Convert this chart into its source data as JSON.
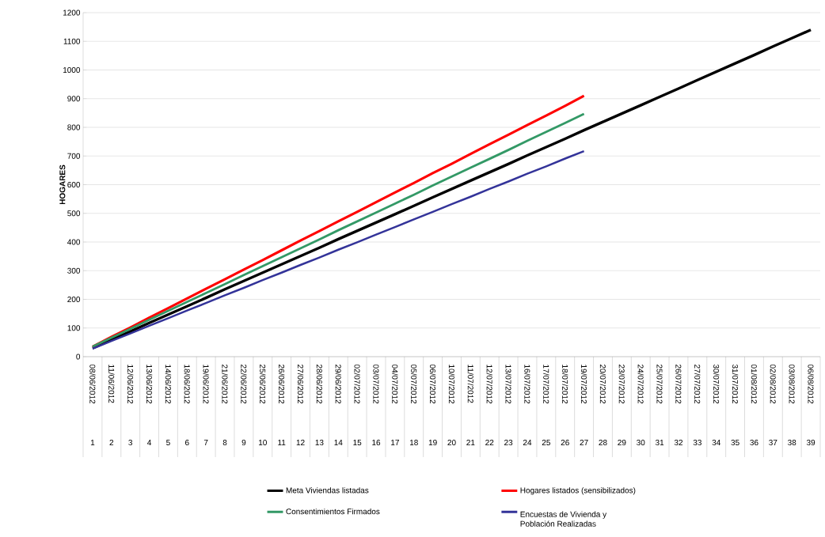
{
  "chart_data": {
    "type": "line",
    "ylabel": "**HOGARES**",
    "categories": [
      "08/06/2012",
      "11/06/2012",
      "12/06/2012",
      "13/06/2012",
      "14/06/2012",
      "18/06/2012",
      "19/06/2012",
      "21/06/2012",
      "22/06/2012",
      "25/06/2012",
      "26/06/2012",
      "27/06/2012",
      "28/06/2012",
      "29/06/2012",
      "02/07/2012",
      "03/07/2012",
      "04/07/2012",
      "05/07/2012",
      "06/07/2012",
      "10/07/2012",
      "11/07/2012",
      "12/07/2012",
      "13/07/2012",
      "16/07/2012",
      "17/07/2012",
      "18/07/2012",
      "19/07/2012",
      "20/07/2012",
      "23/07/2012",
      "24/07/2012",
      "25/07/2012",
      "26/07/2012",
      "27/07/2012",
      "30/07/2012",
      "31/07/2012",
      "01/08/2012",
      "02/08/2012",
      "03/08/2012",
      "06/08/2012"
    ],
    "annotations": [
      "1",
      "2",
      "3",
      "4",
      "5",
      "6",
      "7",
      "8",
      "9",
      "10",
      "11",
      "12",
      "13",
      "14",
      "15",
      "16",
      "17",
      "18",
      "19",
      "20",
      "21",
      "22",
      "23",
      "24",
      "25",
      "26",
      "27",
      "28",
      "29",
      "30",
      "31",
      "32",
      "33",
      "34",
      "35",
      "36",
      "37",
      "38",
      "39"
    ],
    "ylim": [
      0,
      1200
    ],
    "yticks": [
      0,
      100,
      200,
      300,
      400,
      500,
      600,
      700,
      800,
      900,
      1000,
      1100,
      1200
    ],
    "grid": "y",
    "legend": "bottom",
    "line_style": "solid",
    "series": [
      {
        "name": "Meta Viviendas listadas",
        "color": "#000000",
        "values": [
          30,
          59,
          88,
          118,
          147,
          176,
          205,
          235,
          264,
          293,
          322,
          351,
          380,
          410,
          439,
          468,
          497,
          526,
          556,
          585,
          614,
          643,
          672,
          702,
          731,
          760,
          790,
          819,
          848,
          877,
          906,
          935,
          965,
          994,
          1023,
          1052,
          1082,
          1111,
          1140
        ]
      },
      {
        "name": "Hogares listados (sensibilizados)",
        "color": "#ff0000",
        "values": [
          35,
          69,
          102,
          136,
          169,
          203,
          237,
          270,
          304,
          337,
          371,
          405,
          438,
          472,
          505,
          539,
          573,
          606,
          640,
          673,
          707,
          741,
          774,
          808,
          841,
          875,
          910,
          null,
          null,
          null,
          null,
          null,
          null,
          null,
          null,
          null,
          null,
          null,
          null
        ]
      },
      {
        "name": "Consentimientos Firmados",
        "color": "#339966",
        "values": [
          35,
          66,
          97,
          129,
          160,
          191,
          222,
          253,
          285,
          316,
          347,
          378,
          409,
          441,
          472,
          503,
          534,
          565,
          597,
          628,
          659,
          690,
          721,
          753,
          784,
          815,
          847,
          null,
          null,
          null,
          null,
          null,
          null,
          null,
          null,
          null,
          null,
          null,
          null
        ]
      },
      {
        "name": "Encuestas de Vivienda y Población Realizadas",
        "color": "#333399",
        "values": [
          28,
          55,
          81,
          108,
          134,
          161,
          187,
          214,
          240,
          267,
          293,
          320,
          346,
          373,
          399,
          426,
          452,
          479,
          505,
          532,
          558,
          585,
          611,
          638,
          664,
          691,
          717,
          null,
          null,
          null,
          null,
          null,
          null,
          null,
          null,
          null,
          null,
          null,
          null
        ]
      }
    ]
  }
}
